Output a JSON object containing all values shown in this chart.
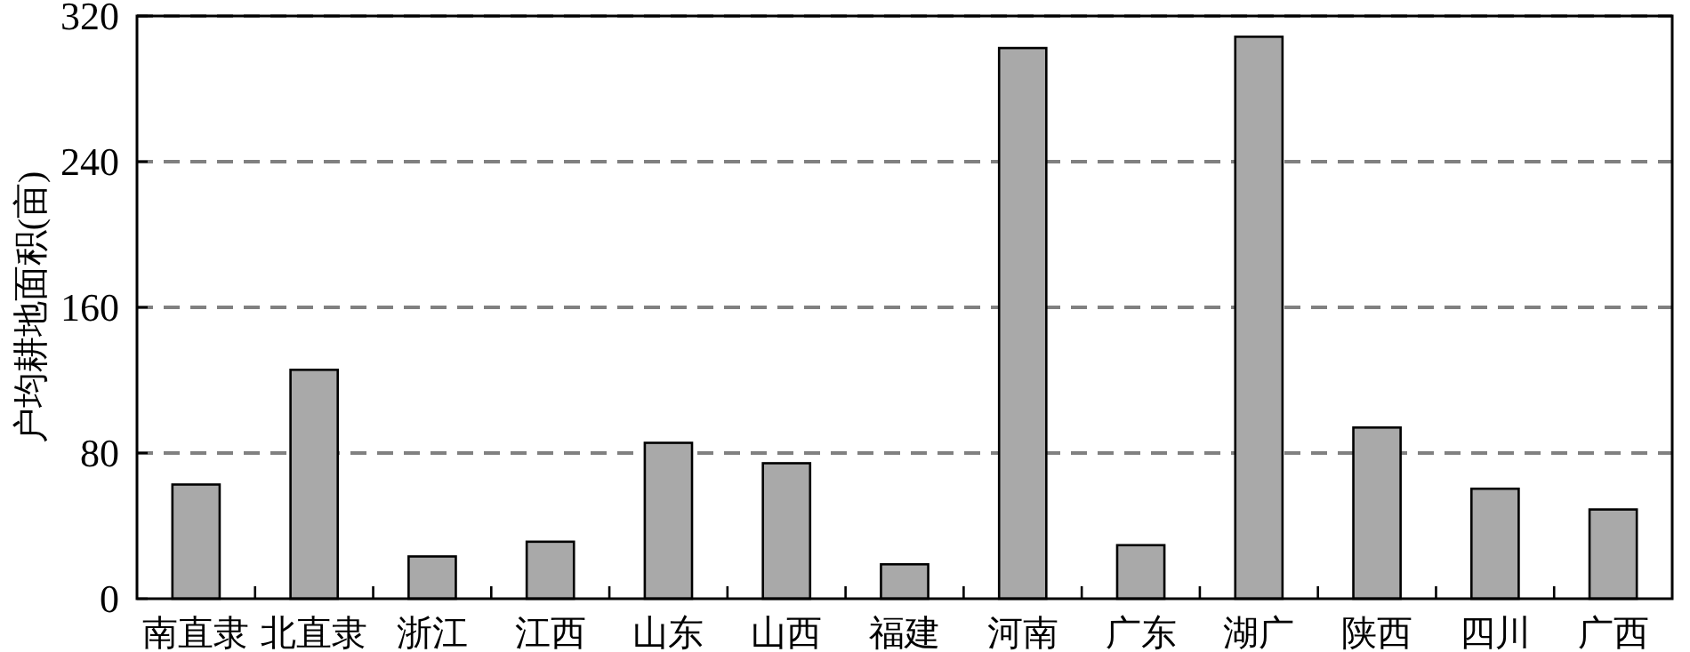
{
  "chart_data": {
    "type": "bar",
    "ylabel": "户均耕地面积(亩)",
    "categories": [
      "南直隶",
      "北直隶",
      "浙江",
      "江西",
      "山东",
      "山西",
      "福建",
      "河南",
      "广东",
      "湖广",
      "陕西",
      "四川",
      "广西"
    ],
    "values": [
      62.7,
      125.7,
      23.2,
      31.3,
      85.6,
      74.4,
      18.9,
      302.4,
      29.4,
      308.6,
      94,
      60.4,
      49
    ],
    "color": "#a9a9a9",
    "ylim": [
      0,
      320
    ],
    "yticks": [
      0,
      80,
      160,
      240,
      320
    ],
    "grid": "y"
  }
}
